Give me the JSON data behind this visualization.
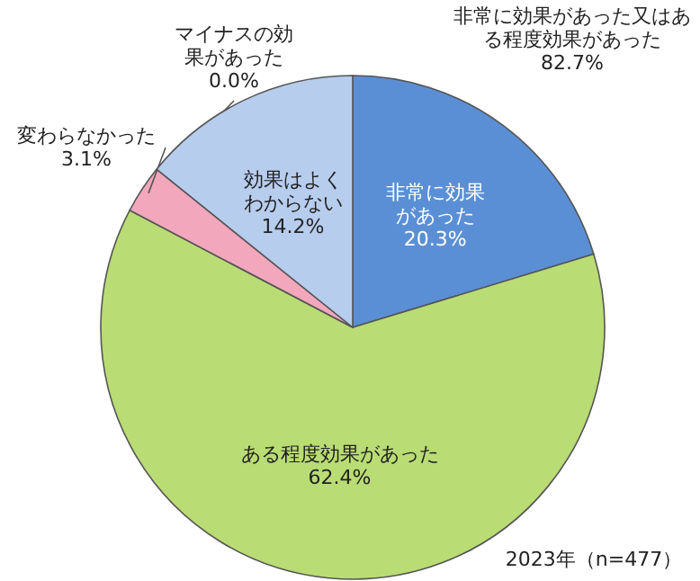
{
  "chart_data": {
    "type": "pie",
    "categories": [
      "非常に効果があった",
      "ある程度効果があった",
      "変わらなかった",
      "マイナスの効果があった",
      "効果はよくわからない"
    ],
    "values": [
      20.3,
      62.4,
      3.1,
      0.0,
      14.2
    ],
    "colors": [
      "#5b8fd5",
      "#b9dc74",
      "#f2a7bd",
      null,
      "#b7cdee"
    ],
    "value_labels": [
      "20.3%",
      "62.4%",
      "3.1%",
      "0.0%",
      "14.2%"
    ],
    "annotations": [
      "非常に効果があった又はある程度効果があった 82.7%",
      "2023年（n=477）"
    ]
  }
}
